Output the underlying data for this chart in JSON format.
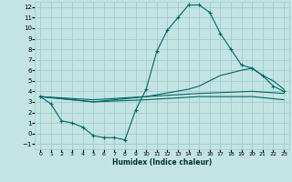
{
  "xlabel": "Humidex (Indice chaleur)",
  "bg_color": "#c4e4e4",
  "grid_color": "#a0cccc",
  "line_color": "#006666",
  "xlim": [
    -0.5,
    23.5
  ],
  "ylim": [
    -1.5,
    12.5
  ],
  "xticks": [
    0,
    1,
    2,
    3,
    4,
    5,
    6,
    7,
    8,
    9,
    10,
    11,
    12,
    13,
    14,
    15,
    16,
    17,
    18,
    19,
    20,
    21,
    22,
    23
  ],
  "yticks": [
    -1,
    0,
    1,
    2,
    3,
    4,
    5,
    6,
    7,
    8,
    9,
    10,
    11,
    12
  ],
  "line1_x": [
    0,
    1,
    2,
    3,
    4,
    5,
    6,
    7,
    8,
    9,
    10,
    11,
    12,
    13,
    14,
    15,
    16,
    17,
    18,
    19,
    20,
    21,
    22,
    23
  ],
  "line1_y": [
    3.5,
    2.8,
    1.2,
    1.0,
    0.6,
    -0.2,
    -0.4,
    -0.4,
    -0.6,
    2.2,
    4.2,
    7.8,
    9.8,
    11.0,
    12.2,
    12.2,
    11.5,
    9.5,
    8.0,
    6.5,
    6.2,
    5.5,
    4.5,
    4.0
  ],
  "line2_x": [
    0,
    5,
    10,
    14,
    15,
    17,
    19,
    20,
    21,
    22,
    23
  ],
  "line2_y": [
    3.5,
    3.0,
    3.5,
    4.2,
    4.5,
    5.5,
    6.0,
    6.2,
    5.5,
    5.0,
    4.2
  ],
  "line3_x": [
    0,
    5,
    10,
    15,
    20,
    23
  ],
  "line3_y": [
    3.5,
    3.2,
    3.5,
    3.8,
    4.0,
    3.8
  ],
  "line4_x": [
    0,
    5,
    10,
    15,
    20,
    23
  ],
  "line4_y": [
    3.5,
    3.0,
    3.2,
    3.5,
    3.5,
    3.2
  ]
}
